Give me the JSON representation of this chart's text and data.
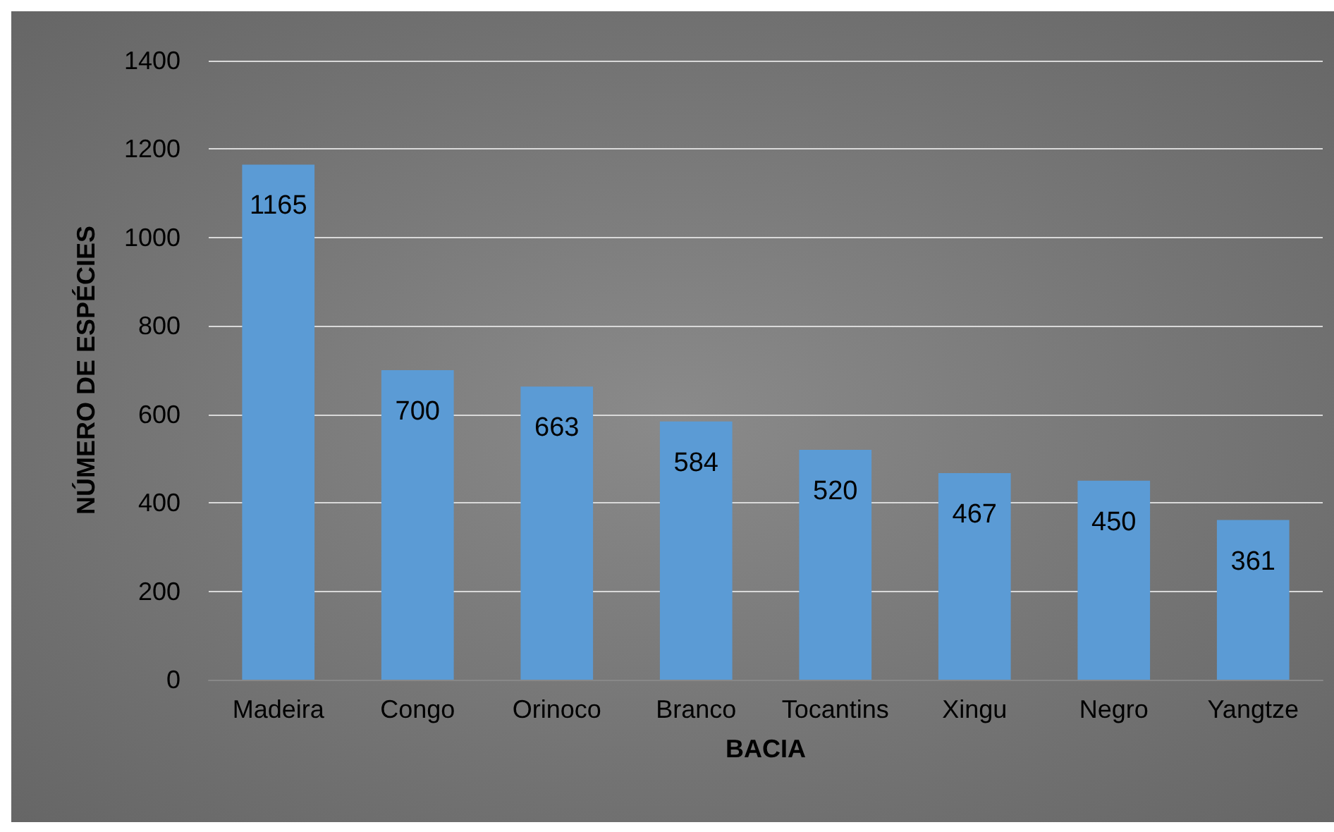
{
  "chart_data": {
    "type": "bar",
    "xlabel": "BACIA",
    "ylabel": "NÚMERO DE ESPÉCIES",
    "categories": [
      "Madeira",
      "Congo",
      "Orinoco",
      "Branco",
      "Tocantins",
      "Xingu",
      "Negro",
      "Yangtze"
    ],
    "values": [
      1165,
      700,
      663,
      584,
      520,
      467,
      450,
      361
    ],
    "color": "#5b9bd5",
    "ylim": [
      0,
      1400
    ],
    "yticks": [
      0,
      200,
      400,
      600,
      800,
      1000,
      1200,
      1400
    ],
    "grid": "y",
    "data_labels": true
  }
}
